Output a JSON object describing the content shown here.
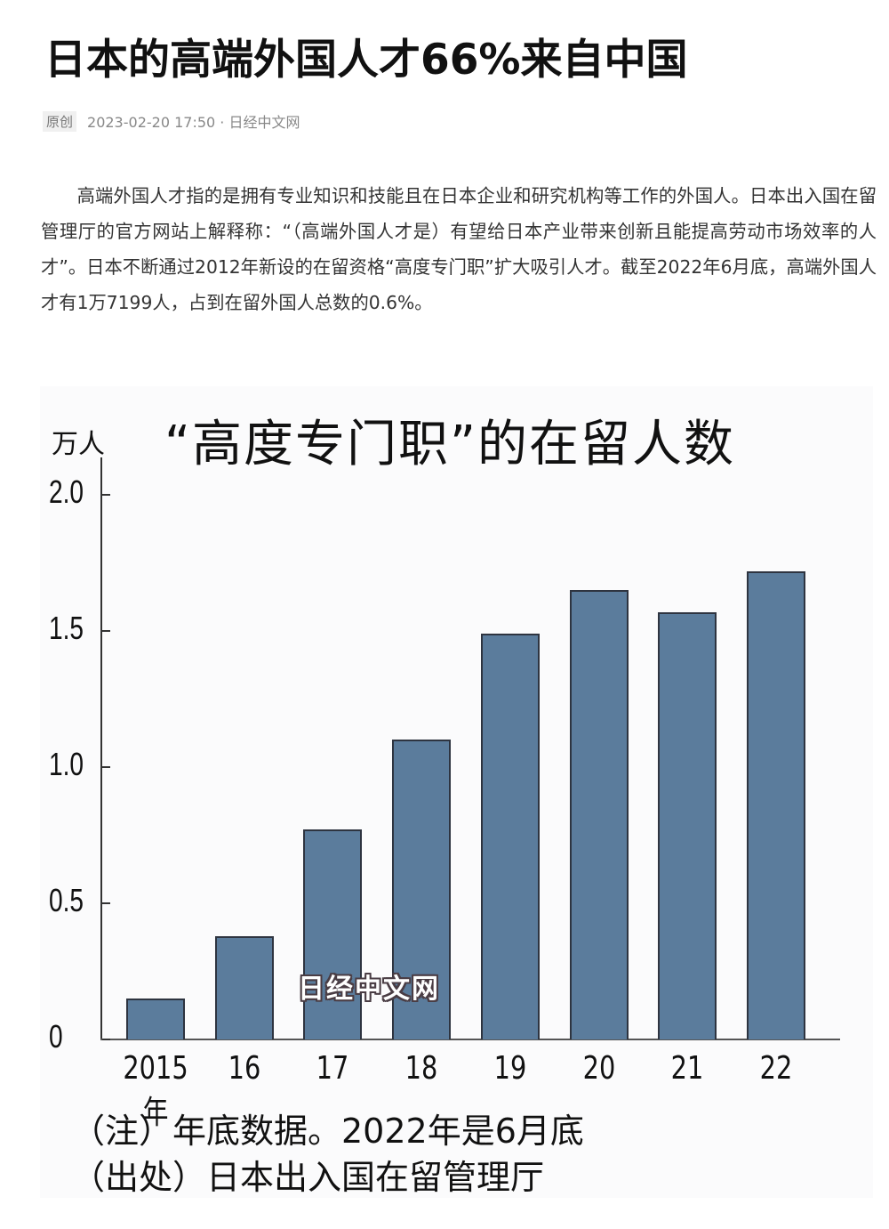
{
  "article": {
    "title": "日本的高端外国人才66%来自中国",
    "badge": "原创",
    "meta": "2023-02-20 17:50 · 日经中文网",
    "paragraph": "高端外国人才指的是拥有专业知识和技能且在日本企业和研究机构等工作的外国人。日本出入国在留管理厅的官方网站上解释称：“（高端外国人才是）有望给日本产业带来创新且能提高劳动市场效率的人才”。日本不断通过2012年新设的在留资格“高度专门职”扩大吸引人才。截至2022年6月底，高端外国人才有1万7199人，占到在留外国人总数的0.6%。"
  },
  "chart": {
    "watermark": "日经中文网",
    "note": "（注）年底数据。2022年是6月底",
    "source": "（出处）日本出入国在留管理厅",
    "bar_color": "#5b7c9c"
  },
  "chart_data": {
    "type": "bar",
    "title": "“高度专门职”的在留人数",
    "xlabel": "",
    "ylabel": "万人",
    "categories": [
      "2015年",
      "16",
      "17",
      "18",
      "19",
      "20",
      "21",
      "22"
    ],
    "values": [
      0.15,
      0.38,
      0.77,
      1.1,
      1.49,
      1.65,
      1.57,
      1.72
    ],
    "yticks": [
      "0",
      "0.5",
      "1.0",
      "1.5",
      "2.0"
    ],
    "ylim": [
      0,
      2.0
    ],
    "grid": false,
    "legend": null,
    "annotations": [
      "（注）年底数据。2022年是6月底",
      "（出处）日本出入国在留管理厅"
    ]
  }
}
